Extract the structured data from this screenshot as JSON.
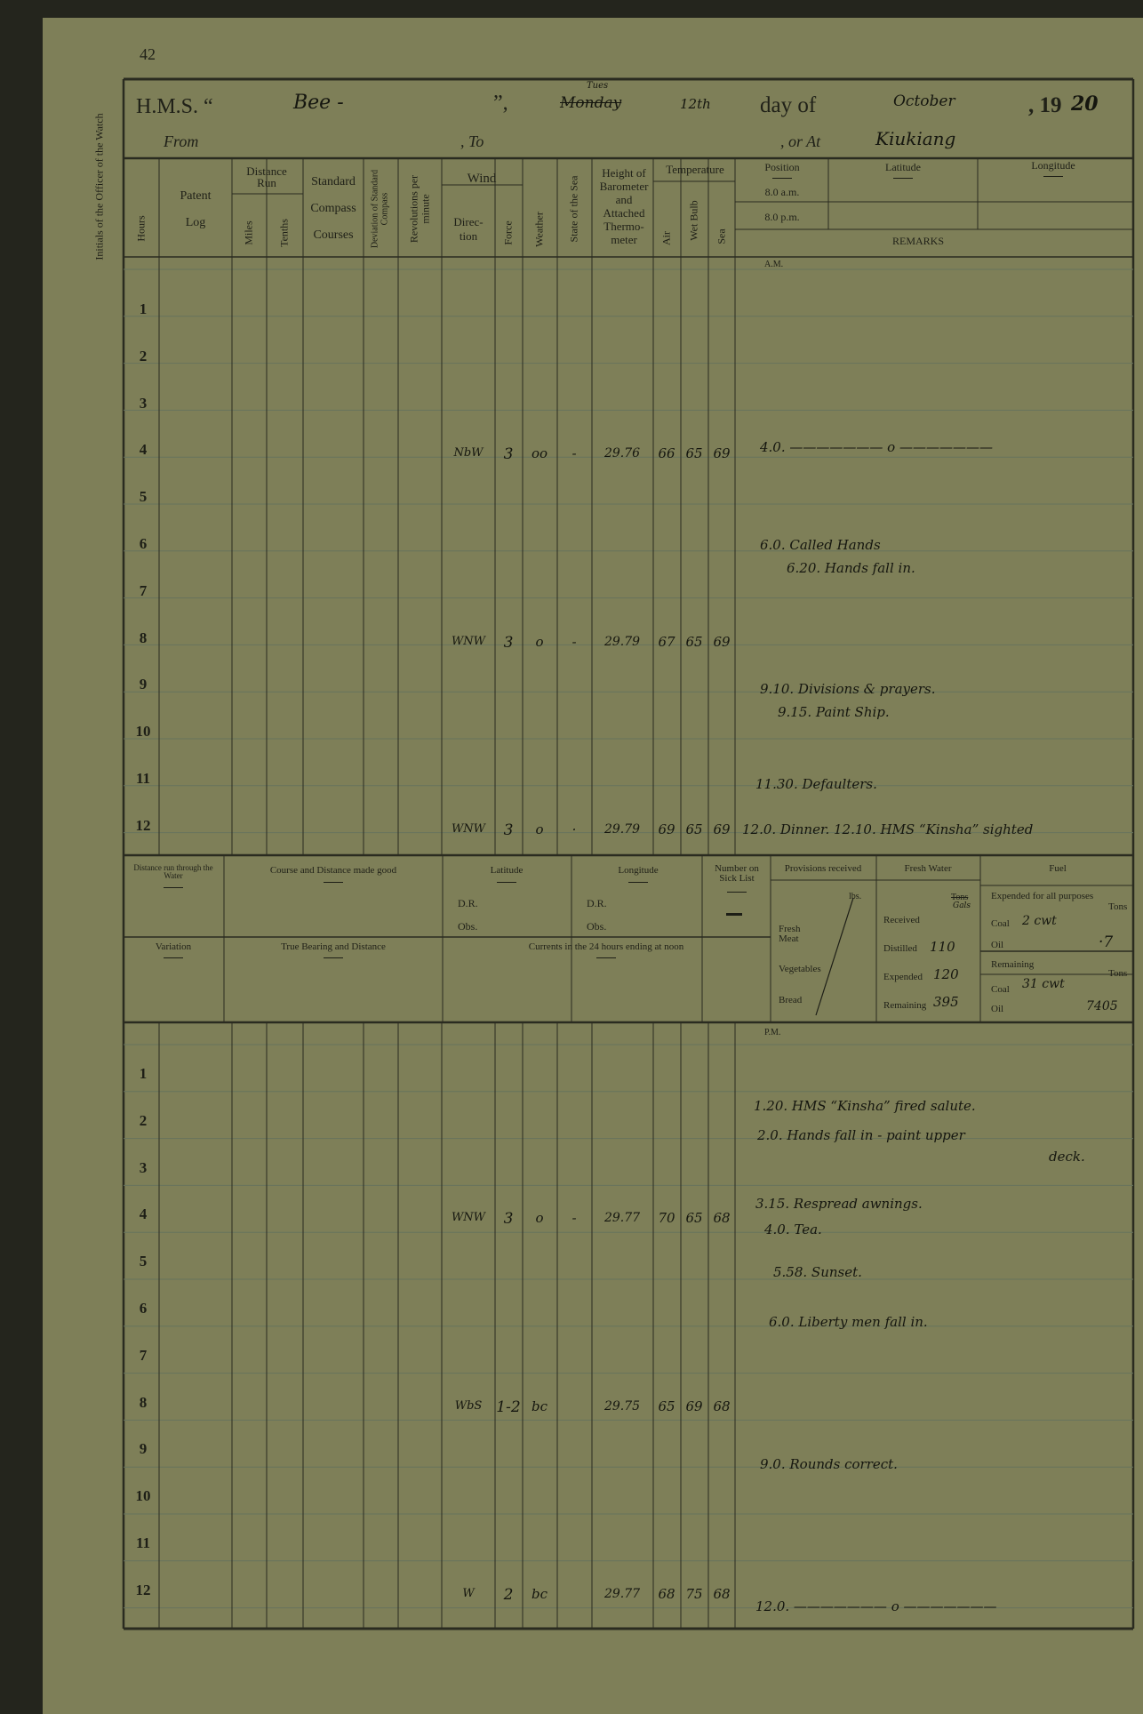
{
  "page_number": "42",
  "margin_label": "Initials of the Officer of the Watch",
  "title": {
    "hms_label": "H.M.S. “",
    "ship": "Bee -",
    "close_quote": "”,",
    "weekday_struck": "Monday",
    "weekday": "Tues",
    "date": "12th",
    "day_of": "day of",
    "month": "October",
    "year_printed": ", 19",
    "year_hand": "20",
    "from_label": "From",
    "to_label": ", To",
    "at_label": ", or At",
    "at": "Kiukiang"
  },
  "headers": {
    "hours": "Hours",
    "patent": "Patent",
    "log": "Log",
    "distance_run": "Distance Run",
    "miles": "Miles",
    "tenths": "Tenths",
    "standard": "Standard",
    "compass": "Compass",
    "courses": "Courses",
    "deviation": "Deviation of Standard Compass",
    "revolutions": "Revolutions per minute",
    "wind": "Wind",
    "direction": "Direc-\ntion",
    "force": "Force",
    "weather": "Weather",
    "state_sea": "State of the Sea",
    "barometer": "Height of Barometer and Attached Thermo-meter",
    "temperature": "Temperature",
    "air": "Air",
    "wet_bulb": "Wet Bulb",
    "sea": "Sea",
    "position": "Position",
    "am8": "8.0 a.m.",
    "pm8": "8.0 p.m.",
    "latitude": "Latitude",
    "longitude": "Longitude",
    "remarks": "REMARKS"
  },
  "am": {
    "label": "A.M.",
    "hours": [
      "1",
      "2",
      "3",
      "4",
      "5",
      "6",
      "7",
      "8",
      "9",
      "10",
      "11",
      "12"
    ],
    "entries": [
      {
        "hour": "4",
        "direction": "NbW",
        "force": "3",
        "weather": "oo",
        "sea": "-",
        "barometer": "29.76",
        "air": "66",
        "wet_bulb": "65",
        "sea_temp": "69"
      },
      {
        "hour": "8",
        "direction": "WNW",
        "force": "3",
        "weather": "o",
        "sea": "-",
        "barometer": "29.79",
        "air": "67",
        "wet_bulb": "65",
        "sea_temp": "69"
      },
      {
        "hour": "12",
        "direction": "WNW",
        "force": "3",
        "weather": "o",
        "sea": "·",
        "barometer": "29.79",
        "air": "69",
        "wet_bulb": "65",
        "sea_temp": "69"
      }
    ],
    "remarks": [
      "4.0. ——————— o ———————",
      "6.0. Called Hands",
      "6.20. Hands fall in.",
      "9.10. Divisions & prayers.",
      "9.15. Paint Ship.",
      "11.30. Defaulters.",
      "12.0. Dinner.   12.10. HMS “Kinsha” sighted"
    ]
  },
  "middle": {
    "distance_water": "Distance run through the Water",
    "course_made_good": "Course and Distance made good",
    "latitude": "Latitude",
    "lat_dr": "D.R.",
    "lat_obs": "Obs.",
    "longitude": "Longitude",
    "lon_dr": "D.R.",
    "lon_obs": "Obs.",
    "sick_list": "Number on Sick List",
    "provisions": "Provisions received",
    "lbs": "lbs.",
    "fresh_meat": "Fresh Meat",
    "vegetables": "Vegetables",
    "bread": "Bread",
    "fresh_water": "Fresh Water",
    "tons_struck": "Tons",
    "gals": "Gals",
    "received": "Received",
    "distilled_label": "Distilled",
    "distilled": "110",
    "expended_label": "Expended",
    "expended": "120",
    "remaining_label": "Remaining",
    "remaining": "395",
    "fuel": "Fuel",
    "expended_all": "Expended for all purposes",
    "tons": "Tons",
    "coal_label": "Coal",
    "coal_expended": "2 cwt",
    "oil_label": "Oil",
    "oil_expended": "·7",
    "remaining_fuel": "Remaining",
    "coal_remaining": "31 cwt",
    "oil_remaining": "7405",
    "variation": "Variation",
    "true_bearing": "True Bearing and Distance",
    "currents": "Currents in the 24 hours ending at noon"
  },
  "pm": {
    "label": "P.M.",
    "hours": [
      "1",
      "2",
      "3",
      "4",
      "5",
      "6",
      "7",
      "8",
      "9",
      "10",
      "11",
      "12"
    ],
    "entries": [
      {
        "hour": "4",
        "direction": "WNW",
        "force": "3",
        "weather": "o",
        "sea": "-",
        "barometer": "29.77",
        "air": "70",
        "wet_bulb": "65",
        "sea_temp": "68"
      },
      {
        "hour": "8",
        "direction": "WbS",
        "force": "1-2",
        "weather": "bc",
        "sea": "",
        "barometer": "29.75",
        "air": "65",
        "wet_bulb": "69",
        "sea_temp": "68"
      },
      {
        "hour": "12",
        "direction": "W",
        "force": "2",
        "weather": "bc",
        "sea": "",
        "barometer": "29.77",
        "air": "68",
        "wet_bulb": "75",
        "sea_temp": "68"
      }
    ],
    "remarks": [
      "1.20. HMS “Kinsha” fired salute.",
      "2.0. Hands fall in - paint upper",
      "deck.",
      "3.15. Respread awnings.",
      "4.0. Tea.",
      "5.58. Sunset.",
      "6.0. Liberty men fall in.",
      "9.0. Rounds correct.",
      "12.0. ——————— o ———————"
    ]
  },
  "colors": {
    "paper": "#7e7f58",
    "ink": "#1d1e16",
    "border": "#24251d"
  }
}
